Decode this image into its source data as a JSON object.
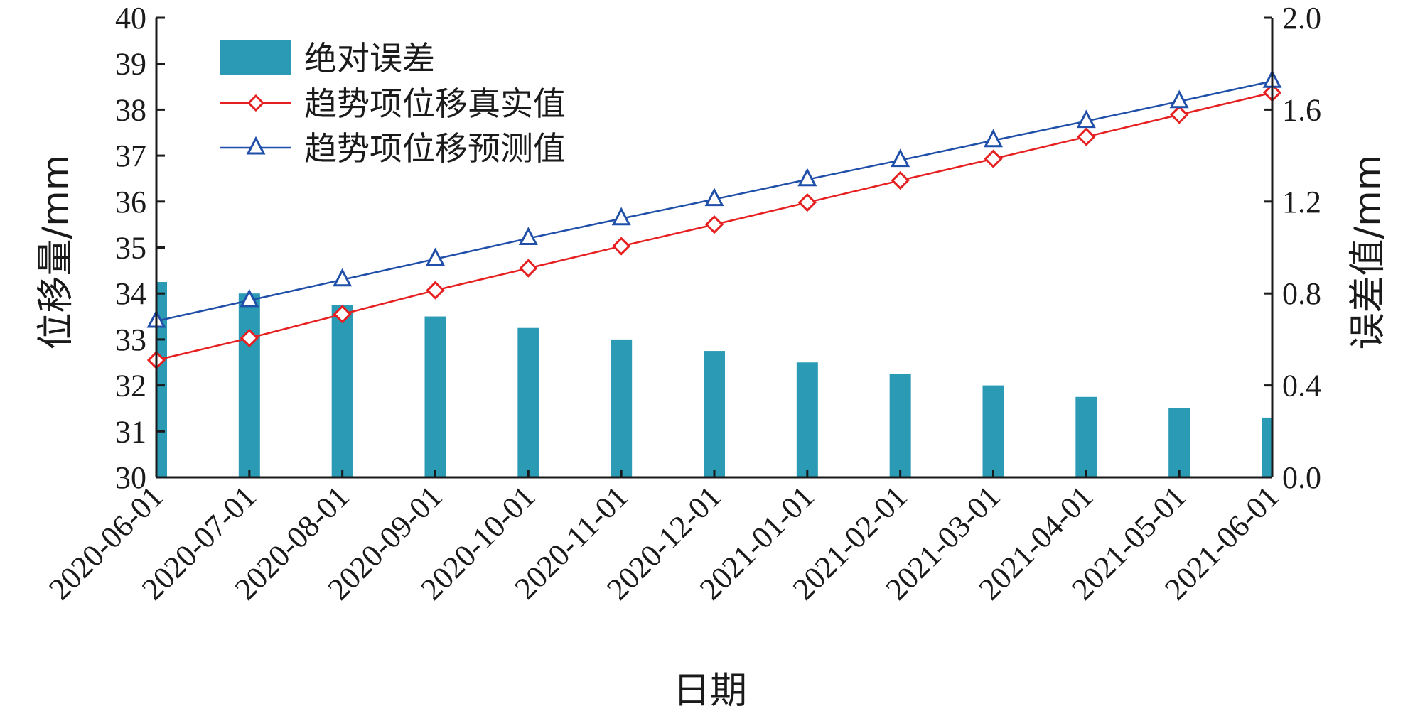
{
  "chart_data": {
    "type": "bar+line",
    "categories": [
      "2020-06-01",
      "2020-07-01",
      "2020-08-01",
      "2020-09-01",
      "2020-10-01",
      "2020-11-01",
      "2020-12-01",
      "2021-01-01",
      "2021-02-01",
      "2021-03-01",
      "2021-04-01",
      "2021-05-01",
      "2021-06-01"
    ],
    "xlabel": "日期",
    "ylabel_left": "位移量/mm",
    "ylabel_right": "误差值/mm",
    "ylim_left": [
      30,
      40
    ],
    "ylim_right": [
      0.0,
      2.0
    ],
    "yticks_left": [
      "30",
      "31",
      "32",
      "33",
      "34",
      "35",
      "36",
      "37",
      "38",
      "39",
      "40"
    ],
    "yticks_right": [
      "0.0",
      "0.4",
      "0.8",
      "1.2",
      "1.6",
      "2.0"
    ],
    "bars": {
      "name": "绝对误差",
      "axis": "right",
      "color": "#2b9ab5",
      "values": [
        0.85,
        0.8,
        0.75,
        0.7,
        0.65,
        0.6,
        0.55,
        0.5,
        0.45,
        0.4,
        0.35,
        0.3,
        0.26
      ]
    },
    "series": [
      {
        "name": "趋势项位移真实值",
        "axis": "left",
        "color": "#e62020",
        "marker": "diamond",
        "values": [
          32.55,
          33.03,
          33.55,
          34.07,
          34.55,
          35.03,
          35.5,
          35.98,
          36.46,
          36.93,
          37.41,
          37.89,
          38.37
        ]
      },
      {
        "name": "趋势项位移预测值",
        "axis": "left",
        "color": "#1f4fa8",
        "marker": "triangle",
        "values": [
          33.4,
          33.85,
          34.3,
          34.75,
          35.2,
          35.63,
          36.05,
          36.48,
          36.9,
          37.33,
          37.75,
          38.18,
          38.62
        ]
      }
    ],
    "legend_position": "top-left",
    "grid": false
  }
}
